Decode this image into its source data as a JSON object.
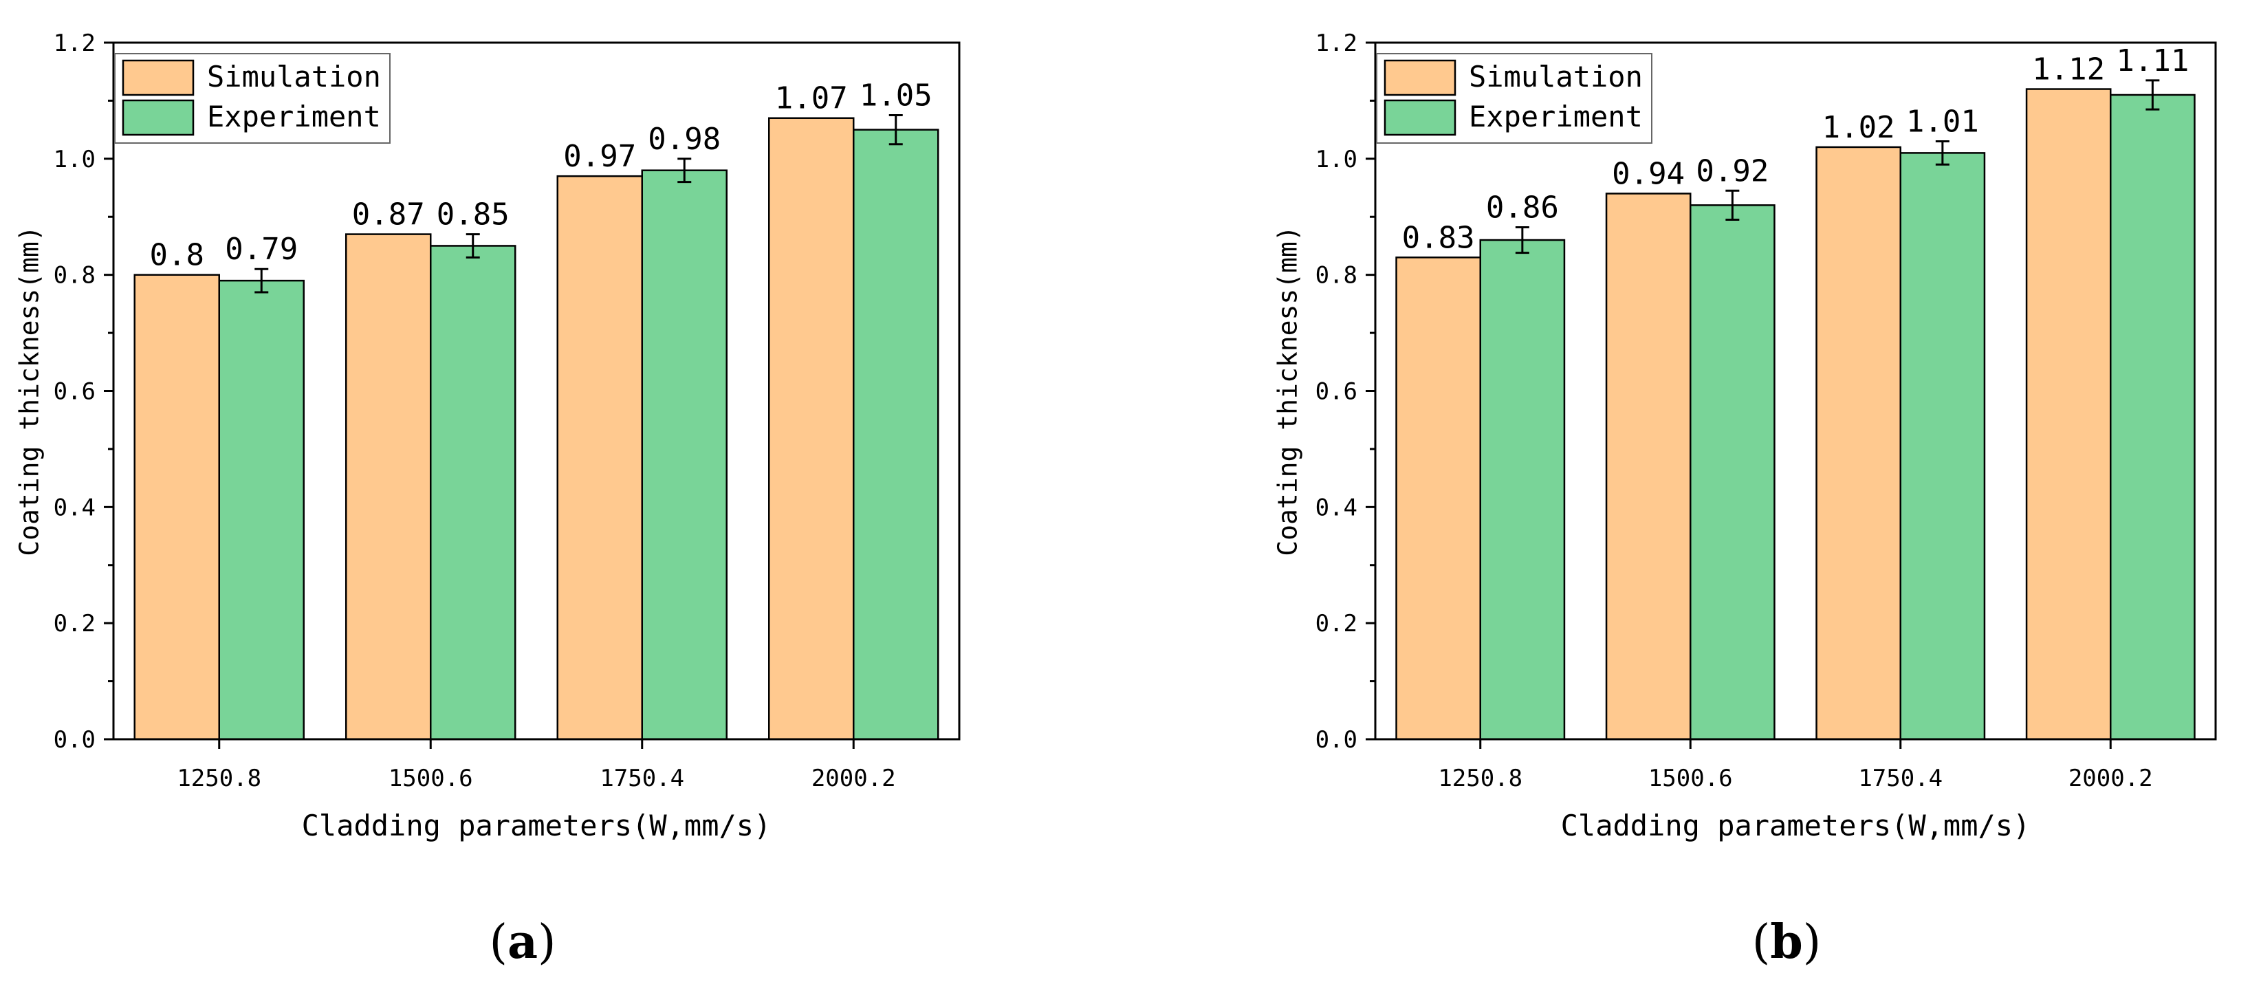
{
  "colors": {
    "simulation": "#ffc98f",
    "experiment": "#79d498",
    "axis": "#000000"
  },
  "chart_data": [
    {
      "type": "bar",
      "panel_label": "a",
      "title": "",
      "xlabel": "Cladding parameters(W,mm/s)",
      "ylabel": "Coating thickness(mm)",
      "ylim": [
        0,
        1.2
      ],
      "yticks": [
        "0.0",
        "0.2",
        "0.4",
        "0.6",
        "0.8",
        "1.0",
        "1.2"
      ],
      "categories": [
        "1250.8",
        "1500.6",
        "1750.4",
        "2000.2"
      ],
      "legend_position": "top-left",
      "series": [
        {
          "name": "Simulation",
          "values": [
            0.8,
            0.87,
            0.97,
            1.07
          ],
          "labels": [
            "0.8",
            "0.87",
            "0.97",
            "1.07"
          ],
          "errors": null
        },
        {
          "name": "Experiment",
          "values": [
            0.79,
            0.85,
            0.98,
            1.05
          ],
          "labels": [
            "0.79",
            "0.85",
            "0.98",
            "1.05"
          ],
          "errors": [
            0.02,
            0.02,
            0.02,
            0.025
          ]
        }
      ]
    },
    {
      "type": "bar",
      "panel_label": "b",
      "title": "",
      "xlabel": "Cladding parameters(W,mm/s)",
      "ylabel": "Coating thickness(mm)",
      "ylim": [
        0,
        1.2
      ],
      "yticks": [
        "0.0",
        "0.2",
        "0.4",
        "0.6",
        "0.8",
        "1.0",
        "1.2"
      ],
      "categories": [
        "1250.8",
        "1500.6",
        "1750.4",
        "2000.2"
      ],
      "legend_position": "top-left",
      "series": [
        {
          "name": "Simulation",
          "values": [
            0.83,
            0.94,
            1.02,
            1.12
          ],
          "labels": [
            "0.83",
            "0.94",
            "1.02",
            "1.12"
          ],
          "errors": null
        },
        {
          "name": "Experiment",
          "values": [
            0.86,
            0.92,
            1.01,
            1.11
          ],
          "labels": [
            "0.86",
            "0.92",
            "1.01",
            "1.11"
          ],
          "errors": [
            0.022,
            0.025,
            0.02,
            0.025
          ]
        }
      ]
    }
  ]
}
